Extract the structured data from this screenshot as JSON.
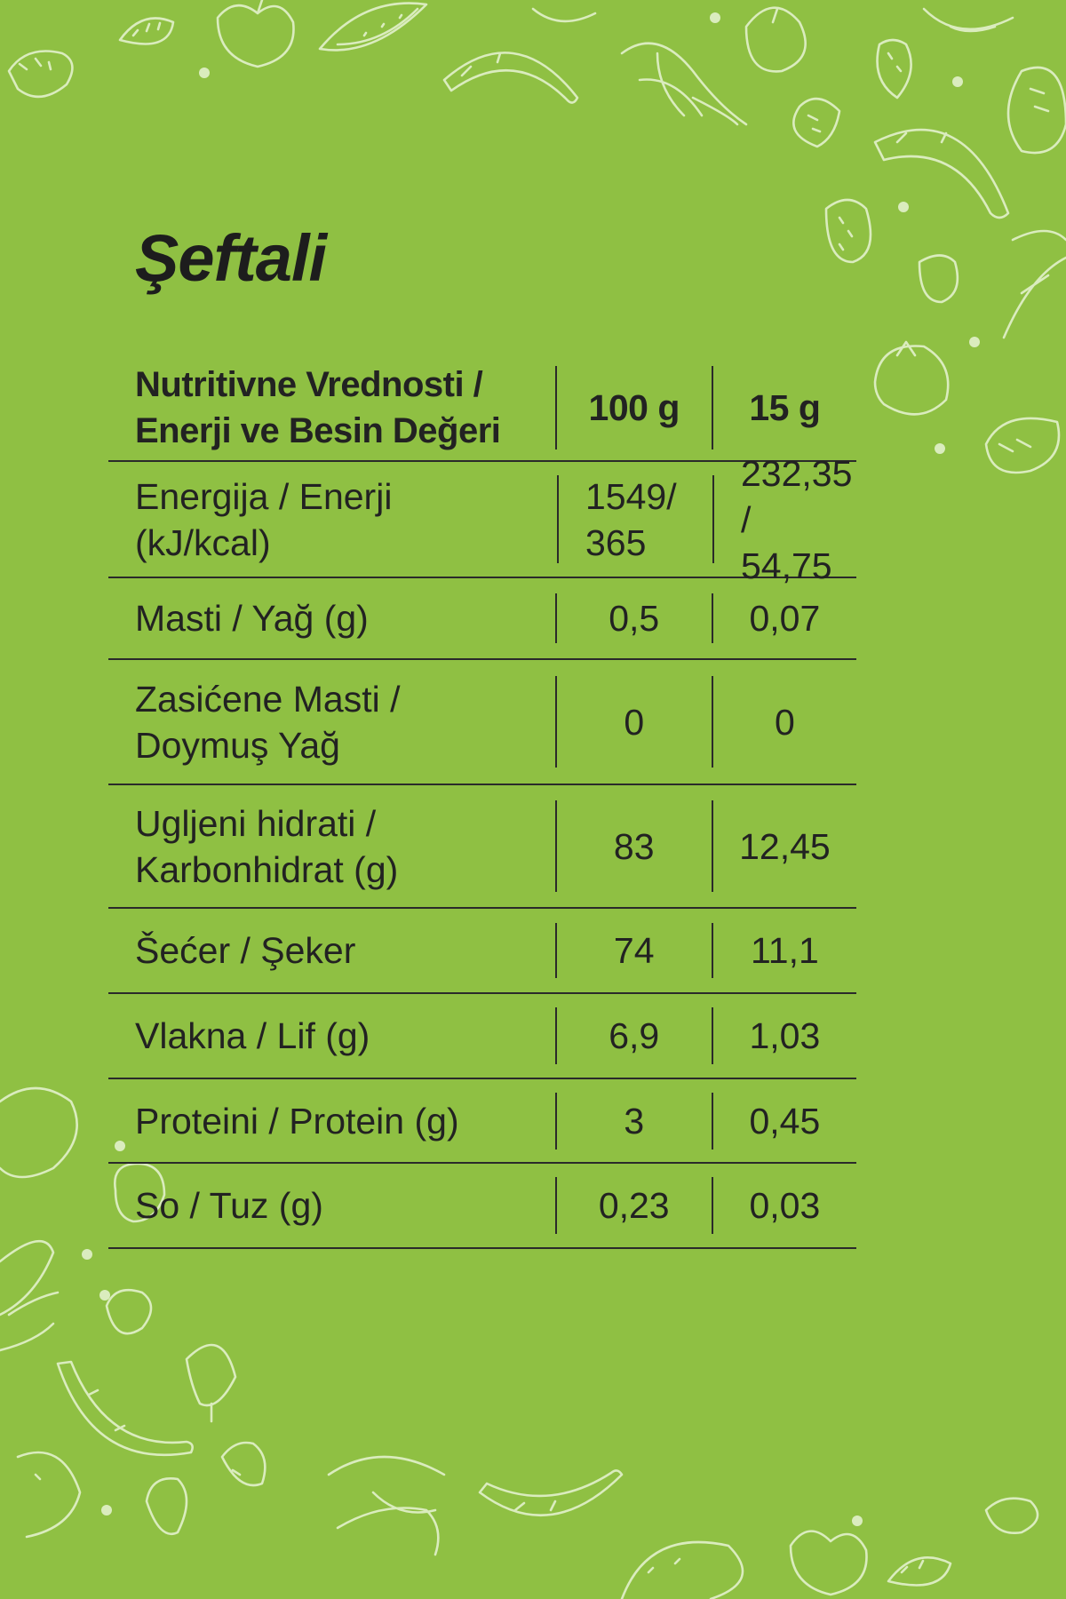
{
  "title": "Şeftali",
  "table": {
    "header": {
      "label": "Nutritivne Vrednosti /\nEnerji ve Besin Değeri",
      "col1": "100 g",
      "col2": "15 g"
    },
    "rows": [
      {
        "label": "Energija / Enerji\n(kJ/kcal)",
        "v1": "1549/\n365",
        "v2": "232,35 /\n54,75"
      },
      {
        "label": "Masti / Yağ (g)",
        "v1": "0,5",
        "v2": "0,07"
      },
      {
        "label": "Zasićene Masti /\nDoymuş Yağ",
        "v1": "0",
        "v2": "0"
      },
      {
        "label": "Ugljeni hidrati /\nKarbonhidrat (g)",
        "v1": "83",
        "v2": "12,45"
      },
      {
        "label": "Šećer / Şeker",
        "v1": "74",
        "v2": "11,1"
      },
      {
        "label": "Vlakna / Lif (g)",
        "v1": "6,9",
        "v2": "1,03"
      },
      {
        "label": "Proteini / Protein (g)",
        "v1": "3",
        "v2": "0,45"
      },
      {
        "label": "So / Tuz (g)",
        "v1": "0,23",
        "v2": "0,03"
      }
    ]
  },
  "colors": {
    "background": "#8fc043",
    "text": "#1d1d1d",
    "doodle": "#e8f3d4"
  }
}
